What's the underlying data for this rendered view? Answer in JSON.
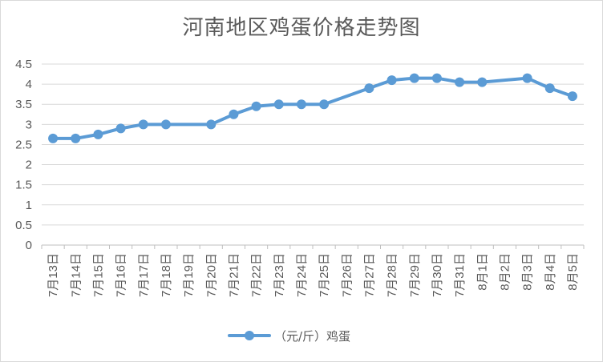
{
  "chart_data": {
    "type": "line",
    "title": "河南地区鸡蛋价格走势图",
    "xlabel": "",
    "ylabel": "",
    "ylim": [
      0,
      4.5
    ],
    "y_ticks": [
      "0",
      "0.5",
      "1",
      "1.5",
      "2",
      "2.5",
      "3",
      "3.5",
      "4",
      "4.5"
    ],
    "grid": "horizontal",
    "legend_position": "bottom",
    "categories": [
      "7月13日",
      "7月14日",
      "7月15日",
      "7月16日",
      "7月17日",
      "7月18日",
      "7月19日",
      "7月20日",
      "7月21日",
      "7月22日",
      "7月23日",
      "7月24日",
      "7月25日",
      "7月26日",
      "7月27日",
      "7月28日",
      "7月29日",
      "7月30日",
      "7月31日",
      "8月1日",
      "8月2日",
      "8月3日",
      "8月4日",
      "8月5日"
    ],
    "series": [
      {
        "name": "（元/斤）鸡蛋",
        "color": "#5b9bd5",
        "values": [
          2.65,
          2.65,
          2.75,
          2.9,
          3.0,
          3.0,
          null,
          3.0,
          3.25,
          3.45,
          3.5,
          3.5,
          3.5,
          null,
          3.9,
          4.1,
          4.15,
          4.15,
          4.05,
          4.05,
          null,
          4.15,
          3.9,
          3.7
        ]
      }
    ]
  }
}
